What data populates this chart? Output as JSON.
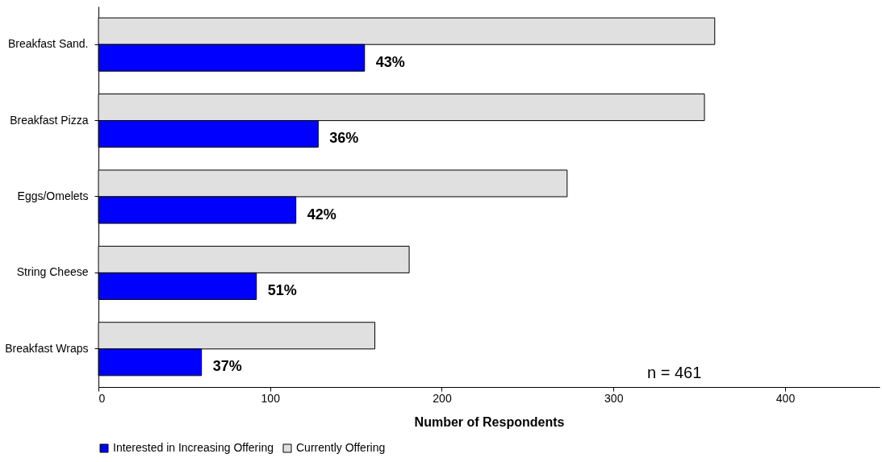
{
  "chart_data": {
    "type": "bar",
    "orientation": "horizontal",
    "xlabel": "Number of Respondents",
    "categories": [
      "Breakfast Sand.",
      "Breakfast Pizza",
      "Eggs/Omelets",
      "String Cheese",
      "Breakfast Wraps"
    ],
    "series": [
      {
        "name": "Currently Offering",
        "color": "#e0e0e0",
        "values": [
          359,
          353,
          273,
          181,
          161
        ]
      },
      {
        "name": "Interested in Increasing Offering",
        "color": "#0000ff",
        "values": [
          155,
          128,
          115,
          92,
          60
        ]
      }
    ],
    "xlim": [
      0,
      455
    ],
    "xticks": [
      0,
      100,
      200,
      300,
      400
    ],
    "grid": false,
    "legend": "bottom",
    "annotations": [
      "n = 461",
      {
        "text": "43%",
        "x": 155,
        "y": "Breakfast Sand."
      },
      {
        "text": "36%",
        "x": 128,
        "y": "Breakfast Pizza"
      },
      {
        "text": "42%",
        "x": 115,
        "y": "Eggs/Omelets"
      },
      {
        "text": "51%",
        "x": 92,
        "y": "String Cheese"
      },
      {
        "text": "37%",
        "x": 60,
        "y": "Breakfast Wraps"
      }
    ]
  }
}
